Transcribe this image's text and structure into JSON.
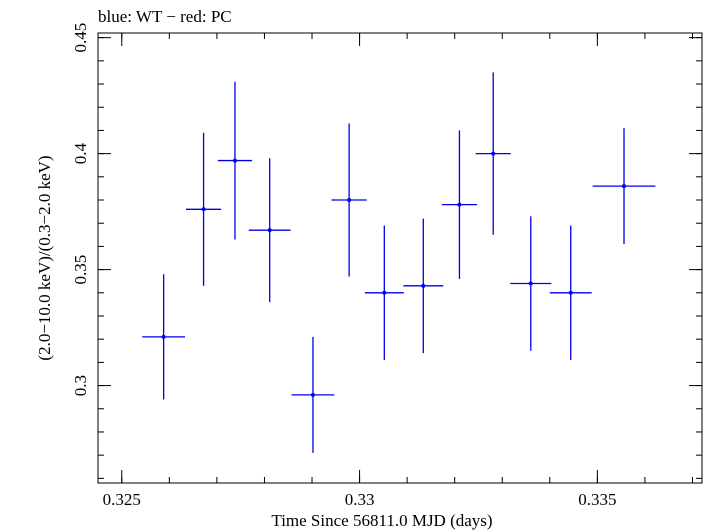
{
  "chart_data": {
    "type": "scatter",
    "title": "blue: WT − red: PC",
    "xlabel": "Time Since 56811.0 MJD (days)",
    "ylabel": "(2.0−10.0 keV)/(0.3−2.0 keV)",
    "xlim": [
      0.3245,
      0.3372
    ],
    "ylim": [
      0.258,
      0.452
    ],
    "x_ticks": [
      {
        "value": 0.325,
        "label": "0.325"
      },
      {
        "value": 0.33,
        "label": "0.33"
      },
      {
        "value": 0.335,
        "label": "0.335"
      }
    ],
    "y_ticks": [
      {
        "value": 0.3,
        "label": "0.3"
      },
      {
        "value": 0.35,
        "label": "0.35"
      },
      {
        "value": 0.4,
        "label": "0.4"
      },
      {
        "value": 0.45,
        "label": "0.45"
      }
    ],
    "x_minor_step": 0.001,
    "y_minor_step": 0.01,
    "series": [
      {
        "color": "#0000ee",
        "points": [
          {
            "x": 0.32588,
            "xerr": 0.00045,
            "y": 0.321,
            "yerr": 0.027
          },
          {
            "x": 0.32672,
            "xerr": 0.00037,
            "y": 0.376,
            "yerr": 0.033
          },
          {
            "x": 0.32738,
            "xerr": 0.00036,
            "y": 0.397,
            "yerr": 0.034
          },
          {
            "x": 0.32811,
            "xerr": 0.00044,
            "y": 0.367,
            "yerr": 0.031
          },
          {
            "x": 0.32902,
            "xerr": 0.00045,
            "y": 0.296,
            "yerr": 0.025
          },
          {
            "x": 0.32978,
            "xerr": 0.00037,
            "y": 0.38,
            "yerr": 0.033
          },
          {
            "x": 0.33052,
            "xerr": 0.00041,
            "y": 0.34,
            "yerr": 0.029
          },
          {
            "x": 0.33134,
            "xerr": 0.00042,
            "y": 0.343,
            "yerr": 0.029
          },
          {
            "x": 0.3321,
            "xerr": 0.00037,
            "y": 0.378,
            "yerr": 0.032
          },
          {
            "x": 0.33281,
            "xerr": 0.00037,
            "y": 0.4,
            "yerr": 0.035
          },
          {
            "x": 0.3336,
            "xerr": 0.00043,
            "y": 0.344,
            "yerr": 0.029
          },
          {
            "x": 0.33444,
            "xerr": 0.00044,
            "y": 0.34,
            "yerr": 0.029
          },
          {
            "x": 0.33556,
            "xerr": 0.00066,
            "y": 0.386,
            "yerr": 0.025
          }
        ]
      }
    ]
  }
}
